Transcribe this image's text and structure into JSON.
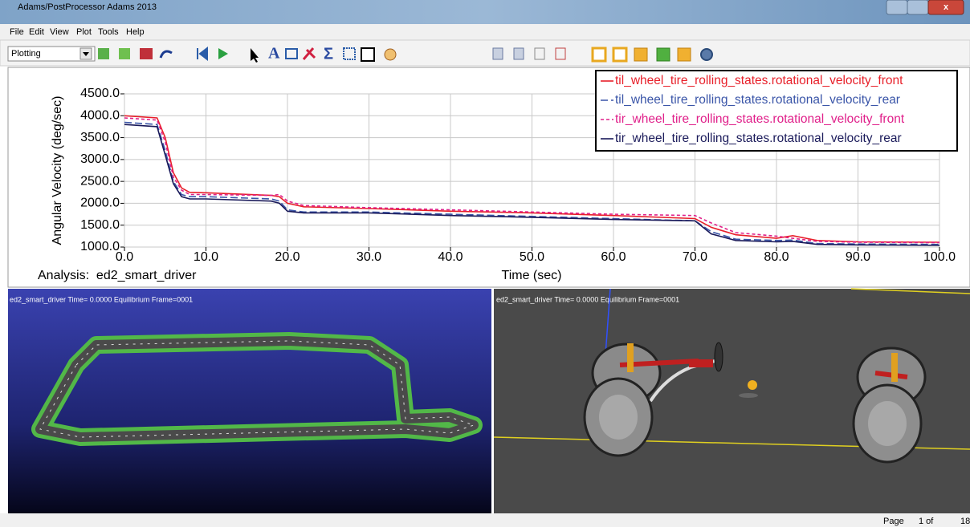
{
  "window": {
    "title": "Adams/PostProcessor Adams 2013"
  },
  "menu": [
    "File",
    "Edit",
    "View",
    "Plot",
    "Tools",
    "Help"
  ],
  "toolbar": {
    "mode": "Plotting"
  },
  "chart_data": {
    "type": "line",
    "ylabel": "Angular Velocity (deg/sec)",
    "xlabel": "Time (sec)",
    "analysis": "Analysis:  ed2_smart_driver",
    "x": [
      0,
      4,
      5,
      6,
      7,
      8,
      10,
      18,
      19,
      20,
      22,
      30,
      40,
      50,
      60,
      70,
      72,
      75,
      80,
      82,
      85,
      90,
      100
    ],
    "series": [
      {
        "name": "til_wheel_tire_rolling_states.rotational_velocity_front",
        "color": "#e8202a",
        "dash": "none",
        "values": [
          4000,
          3950,
          3500,
          2700,
          2350,
          2250,
          2240,
          2180,
          2150,
          2000,
          1920,
          1880,
          1820,
          1780,
          1720,
          1650,
          1450,
          1280,
          1200,
          1260,
          1150,
          1120,
          1110
        ]
      },
      {
        "name": "til_wheel_tire_rolling_states.rotational_velocity_rear",
        "color": "#3a55a8",
        "dash": "9 4",
        "values": [
          3850,
          3800,
          3200,
          2500,
          2200,
          2150,
          2150,
          2100,
          2050,
          1850,
          1800,
          1800,
          1750,
          1700,
          1650,
          1600,
          1350,
          1180,
          1150,
          1160,
          1080,
          1070,
          1060
        ]
      },
      {
        "name": "tir_wheel_tire_rolling_states.rotational_velocity_front",
        "color": "#e0208a",
        "dash": "4 3",
        "values": [
          3950,
          3900,
          3400,
          2600,
          2300,
          2200,
          2200,
          2180,
          2200,
          2050,
          1950,
          1900,
          1850,
          1800,
          1750,
          1720,
          1550,
          1330,
          1250,
          1200,
          1130,
          1110,
          1100
        ]
      },
      {
        "name": "tir_wheel_tire_rolling_states.rotational_velocity_rear",
        "color": "#1a1a5a",
        "dash": "none",
        "values": [
          3800,
          3750,
          3100,
          2450,
          2150,
          2100,
          2100,
          2050,
          2000,
          1820,
          1780,
          1780,
          1720,
          1680,
          1630,
          1600,
          1300,
          1150,
          1120,
          1130,
          1060,
          1050,
          1040
        ]
      }
    ],
    "xlim": [
      0,
      100
    ],
    "xticks": [
      {
        "value": 0,
        "label": "0.0"
      },
      {
        "value": 10,
        "label": "10.0"
      },
      {
        "value": 20,
        "label": "20.0"
      },
      {
        "value": 30,
        "label": "30.0"
      },
      {
        "value": 40,
        "label": "40.0"
      },
      {
        "value": 50,
        "label": "50.0"
      },
      {
        "value": 60,
        "label": "60.0"
      },
      {
        "value": 70,
        "label": "70.0"
      },
      {
        "value": 80,
        "label": "80.0"
      },
      {
        "value": 90,
        "label": "90.0"
      },
      {
        "value": 100,
        "label": "100.0"
      }
    ],
    "ylim": [
      1000,
      4500
    ],
    "yticks": [
      {
        "value": 1000,
        "label": "1000.0"
      },
      {
        "value": 1500,
        "label": "1500.0"
      },
      {
        "value": 2000,
        "label": "2000.0"
      },
      {
        "value": 2500,
        "label": "2500.0"
      },
      {
        "value": 3000,
        "label": "3000.0"
      },
      {
        "value": 3500,
        "label": "3500.0"
      },
      {
        "value": 4000,
        "label": "4000.0"
      },
      {
        "value": 4500,
        "label": "4500.0"
      }
    ],
    "grid": true,
    "legend": "top-right"
  },
  "viewports": [
    {
      "label": "ed2_smart_driver  Time= 0.0000 Equilibrium Frame=0001"
    },
    {
      "label": "ed2_smart_driver  Time= 0.0000 Equilibrium Frame=0001"
    }
  ],
  "status": {
    "page": "Page",
    "of": "1 of",
    "total": "18"
  }
}
